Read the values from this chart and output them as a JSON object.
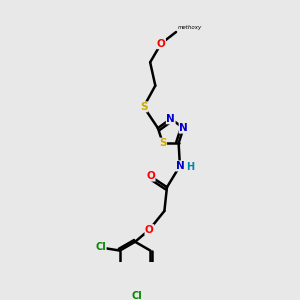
{
  "background_color": "#e8e8e8",
  "atom_colors": {
    "C": "#000000",
    "N": "#0000cc",
    "O": "#ff0000",
    "S": "#ccaa00",
    "Cl": "#008800",
    "H": "#0088aa"
  },
  "bond_color": "#000000",
  "bond_width": 1.8,
  "fig_width": 3.0,
  "fig_height": 3.0,
  "dpi": 100
}
